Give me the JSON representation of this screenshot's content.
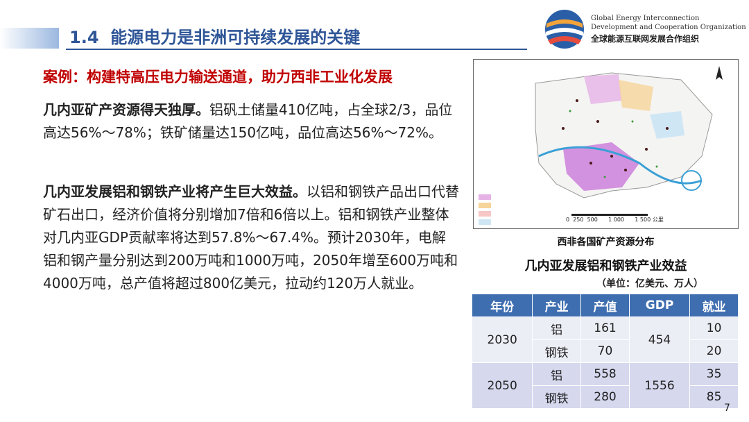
{
  "header": {
    "section": "1.4",
    "title": "能源电力是非洲可持续发展的关键",
    "org_en": [
      "Global Energy Interconnection",
      "Development and Cooperation Organization"
    ],
    "org_cn": "全球能源互联网发展合作组织"
  },
  "case_title": "案例：构建特高压电力输送通道，助力西非工业化发展",
  "paragraphs": [
    {
      "lead": "几内亚矿产资源得天独厚。",
      "text": "铝矾土储量410亿吨，占全球2/3，品位高达56%～78%；铁矿储量达150亿吨，品位高达56%～72%。"
    },
    {
      "lead": "几内亚发展铝和钢铁产业将产生巨大效益。",
      "text": "以铝和钢铁产品出口代替矿石出口，经济价值将分别增加7倍和6倍以上。铝和钢铁产业整体对几内亚GDP贡献率将达到57.8%～67.4%。预计2030年，电解铝和钢产量分别达到200万吨和1000万吨，2050年增至600万吨和4000万吨，总产值将超过800亿美元，拉动约120万人就业。"
    }
  ],
  "map": {
    "caption": "西非各国矿产资源分布",
    "scale": [
      "0",
      "250",
      "500",
      "1 000",
      "1 500",
      "公里"
    ]
  },
  "table": {
    "title": "几内亚发展铝和钢铁产业效益",
    "unit": "（单位：亿美元、万人）",
    "headers": [
      "年份",
      "产业",
      "产值",
      "GDP",
      "就业"
    ],
    "groups": [
      {
        "year": "2030",
        "gdp": 454,
        "rows": [
          {
            "industry": "铝",
            "output": 161,
            "jobs": 10
          },
          {
            "industry": "钢铁",
            "output": 70,
            "jobs": 20
          }
        ]
      },
      {
        "year": "2050",
        "gdp": 1556,
        "rows": [
          {
            "industry": "铝",
            "output": 558,
            "jobs": 35
          },
          {
            "industry": "钢铁",
            "output": 280,
            "jobs": 85
          }
        ]
      }
    ]
  },
  "page_number": "7"
}
